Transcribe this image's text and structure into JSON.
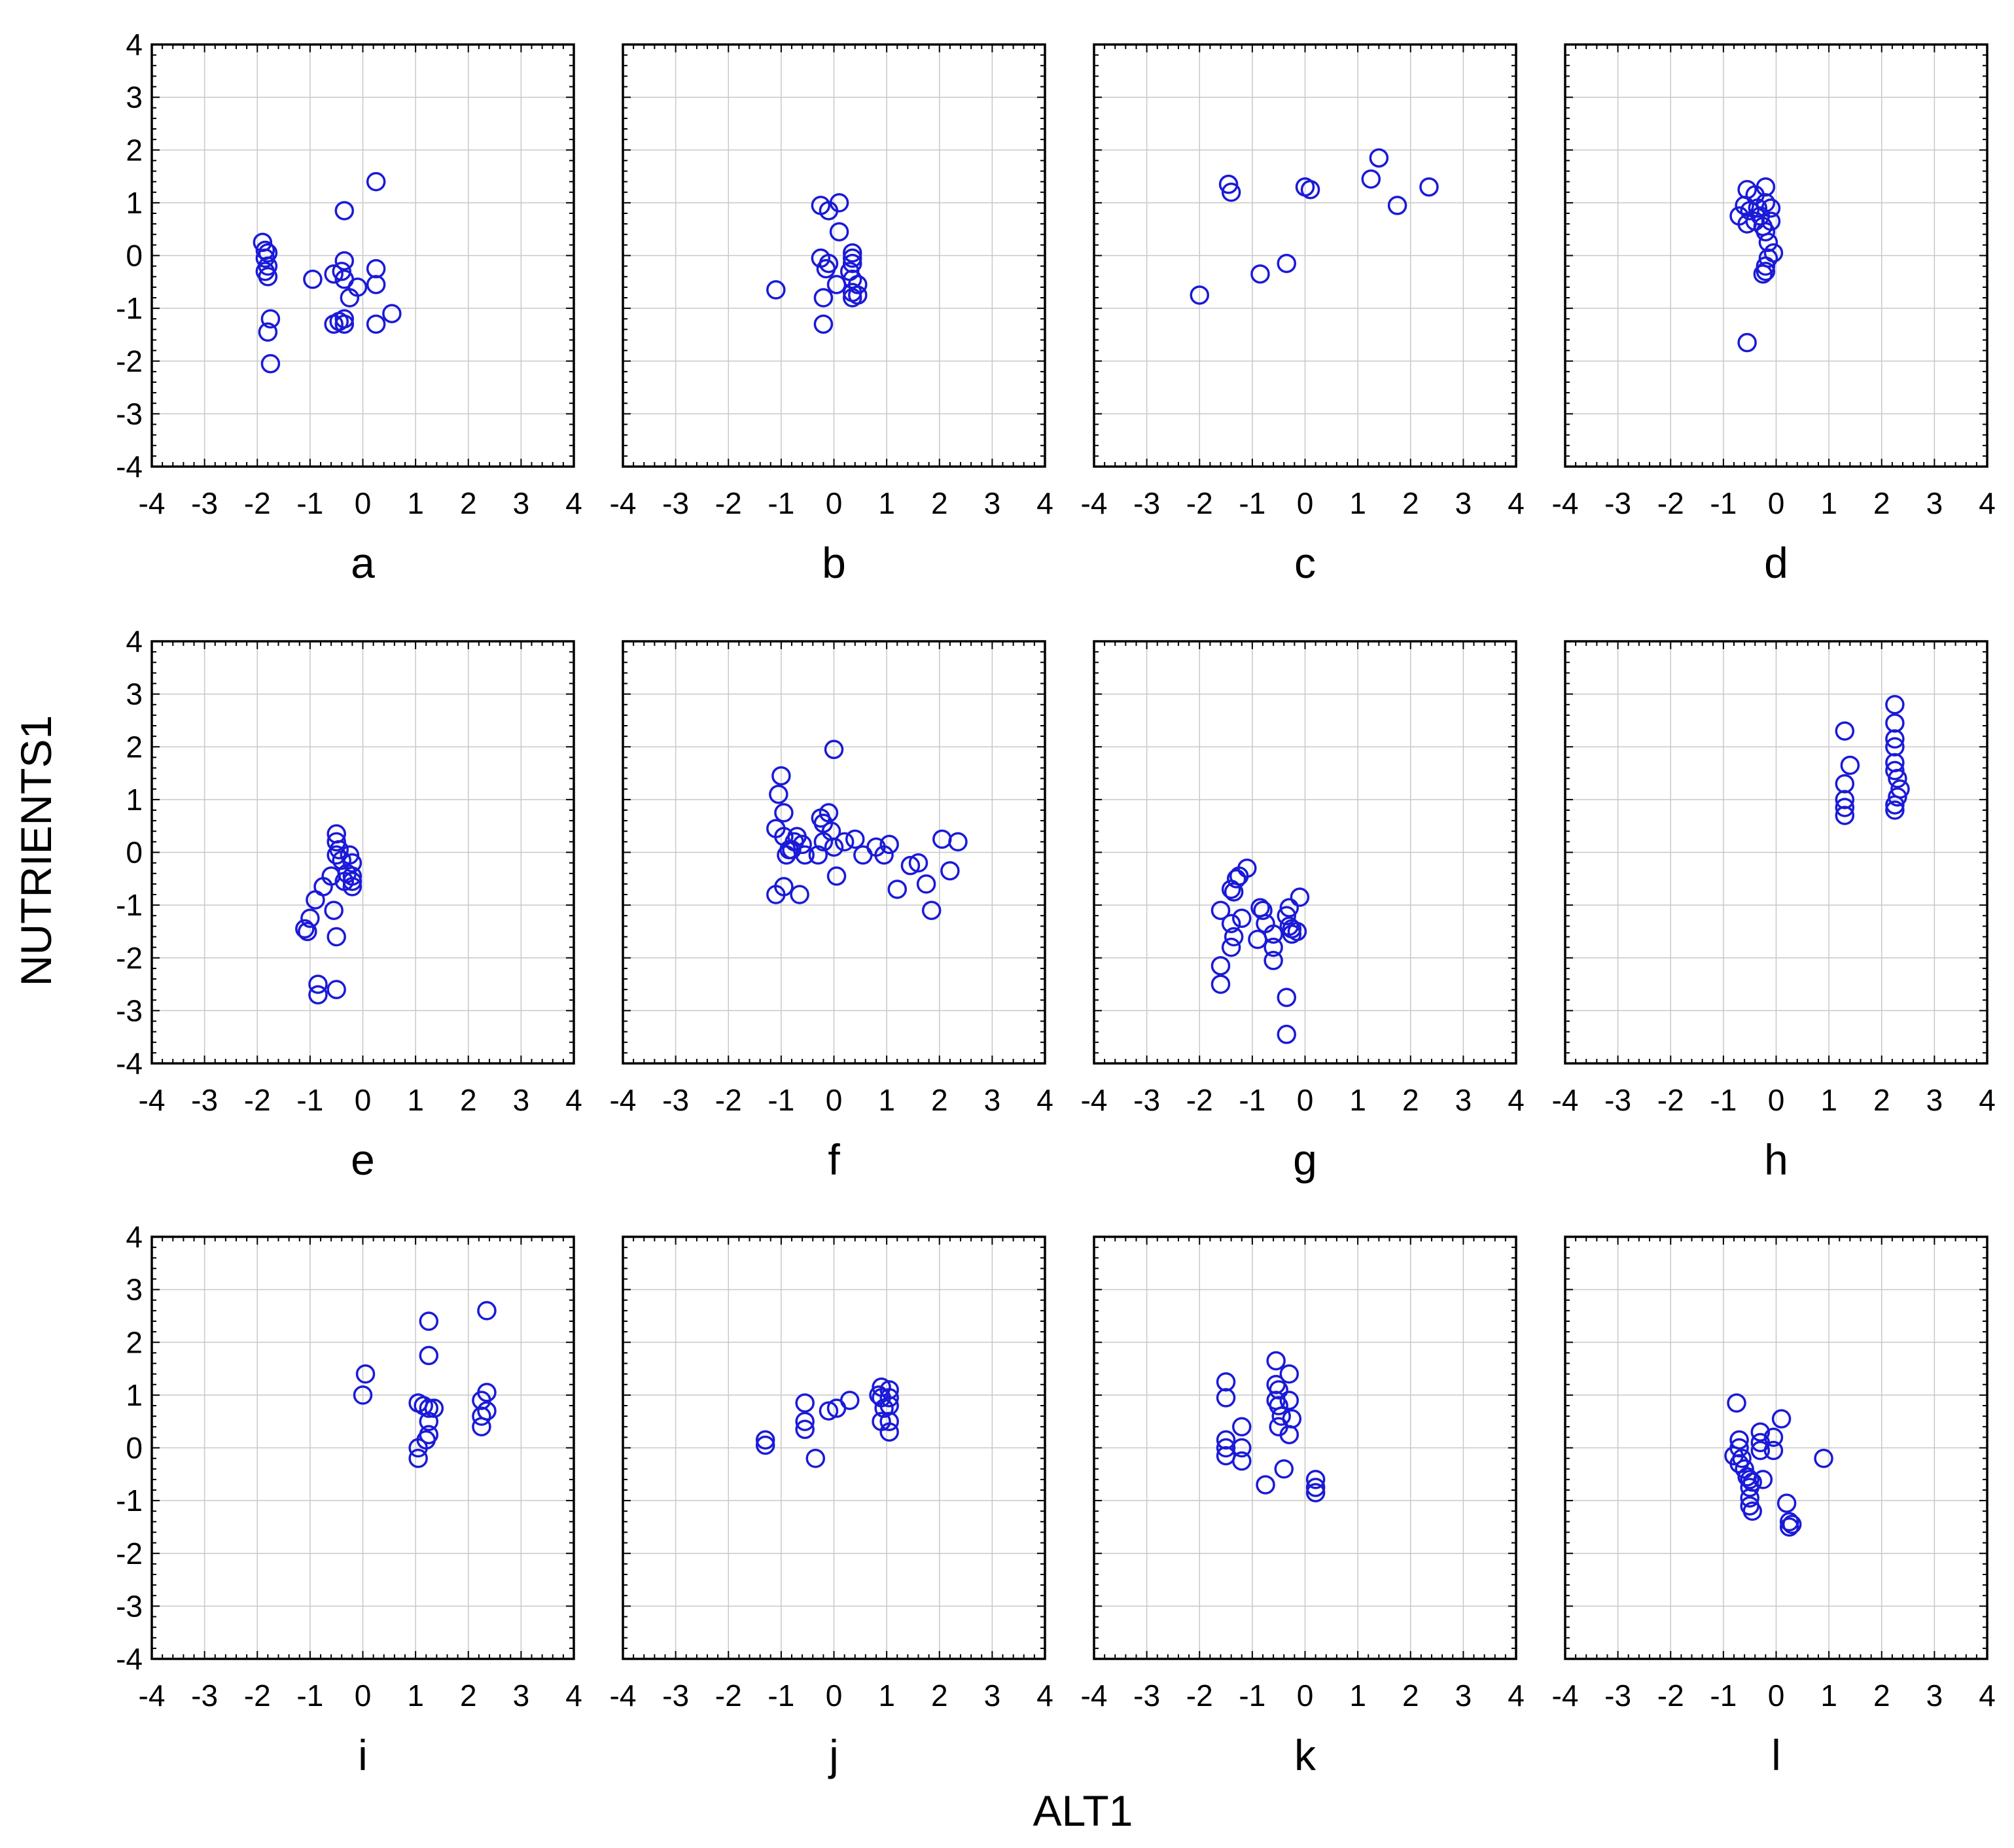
{
  "chart_data": {
    "type": "scatter",
    "layout": "3 rows x 4 columns",
    "xlabel": "ALT1",
    "ylabel": "NUTRIENTS1",
    "xlim": [
      -4,
      4
    ],
    "ylim": [
      -4,
      4
    ],
    "xticks": [
      "-4",
      "-3",
      "-2",
      "-1",
      "0",
      "1",
      "2",
      "3",
      "4"
    ],
    "yticks": [
      "4",
      "3",
      "2",
      "1",
      "0",
      "-1",
      "-2",
      "-3",
      "-4"
    ],
    "grid": true,
    "marker": "open circle",
    "color": "#1a1ad8",
    "panels": [
      {
        "label": "a",
        "points": [
          [
            -1.9,
            0.25
          ],
          [
            -1.85,
            0.1
          ],
          [
            -1.8,
            0.05
          ],
          [
            -1.85,
            -0.05
          ],
          [
            -1.8,
            -0.2
          ],
          [
            -1.85,
            -0.3
          ],
          [
            -1.8,
            -0.4
          ],
          [
            -1.75,
            -1.2
          ],
          [
            -1.8,
            -1.45
          ],
          [
            -1.75,
            -2.05
          ],
          [
            -0.95,
            -0.45
          ],
          [
            -0.55,
            -0.35
          ],
          [
            -0.4,
            -0.3
          ],
          [
            -0.35,
            -0.1
          ],
          [
            -0.35,
            -0.45
          ],
          [
            -0.25,
            -0.8
          ],
          [
            -0.45,
            -1.25
          ],
          [
            -0.35,
            -1.2
          ],
          [
            -0.35,
            -1.3
          ],
          [
            -0.55,
            -1.3
          ],
          [
            -0.35,
            0.85
          ],
          [
            -0.1,
            -0.6
          ],
          [
            0.25,
            -0.25
          ],
          [
            0.25,
            -0.55
          ],
          [
            0.25,
            -1.3
          ],
          [
            0.55,
            -1.1
          ],
          [
            0.25,
            1.4
          ]
        ]
      },
      {
        "label": "b",
        "points": [
          [
            -1.1,
            -0.65
          ],
          [
            -0.25,
            0.95
          ],
          [
            -0.1,
            0.85
          ],
          [
            0.1,
            1.0
          ],
          [
            0.1,
            0.45
          ],
          [
            -0.25,
            -0.05
          ],
          [
            -0.1,
            -0.15
          ],
          [
            -0.15,
            -0.25
          ],
          [
            0.05,
            -0.55
          ],
          [
            -0.2,
            -0.8
          ],
          [
            -0.2,
            -1.3
          ],
          [
            0.35,
            0.05
          ],
          [
            0.35,
            -0.05
          ],
          [
            0.35,
            -0.15
          ],
          [
            0.3,
            -0.3
          ],
          [
            0.35,
            -0.45
          ],
          [
            0.45,
            -0.55
          ],
          [
            0.35,
            -0.7
          ],
          [
            0.45,
            -0.75
          ],
          [
            0.35,
            -0.8
          ]
        ]
      },
      {
        "label": "c",
        "points": [
          [
            -2.0,
            -0.75
          ],
          [
            -0.85,
            -0.35
          ],
          [
            -0.35,
            -0.15
          ],
          [
            -1.45,
            1.35
          ],
          [
            -1.4,
            1.2
          ],
          [
            0.0,
            1.3
          ],
          [
            0.1,
            1.25
          ],
          [
            1.25,
            1.45
          ],
          [
            1.4,
            1.85
          ],
          [
            1.75,
            0.95
          ],
          [
            2.35,
            1.3
          ]
        ]
      },
      {
        "label": "d",
        "points": [
          [
            -0.55,
            1.25
          ],
          [
            -0.4,
            1.15
          ],
          [
            -0.2,
            1.3
          ],
          [
            -0.6,
            0.95
          ],
          [
            -0.5,
            0.85
          ],
          [
            -0.35,
            0.9
          ],
          [
            -0.3,
            0.75
          ],
          [
            -0.2,
            1.0
          ],
          [
            -0.1,
            0.9
          ],
          [
            -0.7,
            0.75
          ],
          [
            -0.55,
            0.6
          ],
          [
            -0.4,
            0.65
          ],
          [
            -0.25,
            0.55
          ],
          [
            -0.1,
            0.65
          ],
          [
            -0.2,
            0.45
          ],
          [
            -0.15,
            0.25
          ],
          [
            -0.05,
            0.05
          ],
          [
            -0.15,
            -0.05
          ],
          [
            -0.2,
            -0.2
          ],
          [
            -0.25,
            -0.35
          ],
          [
            -0.2,
            -0.3
          ],
          [
            -0.55,
            -1.65
          ]
        ]
      },
      {
        "label": "e",
        "points": [
          [
            -0.5,
            0.35
          ],
          [
            -0.5,
            0.2
          ],
          [
            -0.45,
            0.05
          ],
          [
            -0.5,
            -0.05
          ],
          [
            -0.4,
            -0.15
          ],
          [
            -0.25,
            -0.05
          ],
          [
            -0.2,
            -0.2
          ],
          [
            -0.3,
            -0.4
          ],
          [
            -0.2,
            -0.45
          ],
          [
            -0.2,
            -0.55
          ],
          [
            -0.2,
            -0.65
          ],
          [
            -0.35,
            -0.55
          ],
          [
            -0.6,
            -0.45
          ],
          [
            -0.75,
            -0.65
          ],
          [
            -0.9,
            -0.9
          ],
          [
            -0.55,
            -1.1
          ],
          [
            -1.0,
            -1.25
          ],
          [
            -1.1,
            -1.45
          ],
          [
            -1.05,
            -1.5
          ],
          [
            -0.5,
            -1.6
          ],
          [
            -0.85,
            -2.5
          ],
          [
            -0.85,
            -2.7
          ],
          [
            -0.5,
            -2.6
          ]
        ]
      },
      {
        "label": "f",
        "points": [
          [
            -1.0,
            1.45
          ],
          [
            -1.05,
            1.1
          ],
          [
            -0.95,
            0.75
          ],
          [
            -1.1,
            0.45
          ],
          [
            -0.95,
            0.3
          ],
          [
            -0.85,
            0.05
          ],
          [
            -0.7,
            0.3
          ],
          [
            -0.75,
            0.2
          ],
          [
            -0.6,
            0.15
          ],
          [
            -0.8,
            0.05
          ],
          [
            -0.55,
            -0.05
          ],
          [
            -0.9,
            -0.05
          ],
          [
            -1.1,
            -0.8
          ],
          [
            -0.95,
            -0.65
          ],
          [
            -0.65,
            -0.8
          ],
          [
            -0.25,
            0.65
          ],
          [
            -0.2,
            0.55
          ],
          [
            -0.1,
            0.75
          ],
          [
            -0.2,
            0.2
          ],
          [
            -0.3,
            -0.05
          ],
          [
            -0.05,
            0.4
          ],
          [
            0.0,
            0.1
          ],
          [
            0.05,
            -0.45
          ],
          [
            0.0,
            1.95
          ],
          [
            0.2,
            0.2
          ],
          [
            0.4,
            0.25
          ],
          [
            0.55,
            -0.05
          ],
          [
            0.8,
            0.1
          ],
          [
            0.95,
            -0.05
          ],
          [
            1.05,
            0.15
          ],
          [
            1.2,
            -0.7
          ],
          [
            1.45,
            -0.25
          ],
          [
            1.6,
            -0.2
          ],
          [
            1.75,
            -0.6
          ],
          [
            1.85,
            -1.1
          ],
          [
            2.05,
            0.25
          ],
          [
            2.2,
            -0.35
          ],
          [
            2.35,
            0.2
          ]
        ]
      },
      {
        "label": "g",
        "points": [
          [
            -1.1,
            -0.3
          ],
          [
            -1.25,
            -0.45
          ],
          [
            -1.3,
            -0.5
          ],
          [
            -1.4,
            -0.7
          ],
          [
            -1.35,
            -0.75
          ],
          [
            -1.6,
            -1.1
          ],
          [
            -1.4,
            -1.35
          ],
          [
            -1.2,
            -1.25
          ],
          [
            -1.35,
            -1.6
          ],
          [
            -1.4,
            -1.8
          ],
          [
            -1.6,
            -2.15
          ],
          [
            -1.6,
            -2.5
          ],
          [
            -0.85,
            -1.05
          ],
          [
            -0.8,
            -1.1
          ],
          [
            -0.75,
            -1.35
          ],
          [
            -0.9,
            -1.65
          ],
          [
            -0.6,
            -1.55
          ],
          [
            -0.6,
            -1.8
          ],
          [
            -0.6,
            -2.05
          ],
          [
            -0.35,
            -1.2
          ],
          [
            -0.3,
            -1.4
          ],
          [
            -0.25,
            -1.45
          ],
          [
            -0.25,
            -1.55
          ],
          [
            -0.15,
            -1.5
          ],
          [
            -0.1,
            -0.85
          ],
          [
            -0.3,
            -1.05
          ],
          [
            -0.35,
            -2.75
          ],
          [
            -0.35,
            -3.45
          ]
        ]
      },
      {
        "label": "h",
        "points": [
          [
            1.3,
            2.3
          ],
          [
            1.4,
            1.65
          ],
          [
            1.3,
            1.3
          ],
          [
            1.3,
            1.0
          ],
          [
            1.3,
            0.85
          ],
          [
            1.3,
            0.7
          ],
          [
            2.25,
            2.8
          ],
          [
            2.25,
            2.45
          ],
          [
            2.25,
            2.15
          ],
          [
            2.25,
            2.0
          ],
          [
            2.25,
            1.7
          ],
          [
            2.25,
            1.55
          ],
          [
            2.3,
            1.4
          ],
          [
            2.35,
            1.2
          ],
          [
            2.3,
            1.05
          ],
          [
            2.25,
            0.9
          ],
          [
            2.25,
            0.8
          ]
        ]
      },
      {
        "label": "i",
        "points": [
          [
            0.05,
            1.4
          ],
          [
            0.0,
            1.0
          ],
          [
            1.25,
            2.4
          ],
          [
            1.25,
            1.75
          ],
          [
            1.05,
            0.85
          ],
          [
            1.15,
            0.8
          ],
          [
            1.25,
            0.75
          ],
          [
            1.35,
            0.75
          ],
          [
            1.25,
            0.5
          ],
          [
            1.25,
            0.25
          ],
          [
            1.2,
            0.15
          ],
          [
            1.05,
            0.0
          ],
          [
            1.05,
            -0.2
          ],
          [
            2.35,
            2.6
          ],
          [
            2.35,
            1.05
          ],
          [
            2.25,
            0.9
          ],
          [
            2.35,
            0.7
          ],
          [
            2.25,
            0.6
          ],
          [
            2.25,
            0.4
          ]
        ]
      },
      {
        "label": "j",
        "points": [
          [
            -1.3,
            0.15
          ],
          [
            -1.3,
            0.05
          ],
          [
            -0.55,
            0.85
          ],
          [
            -0.55,
            0.5
          ],
          [
            -0.55,
            0.35
          ],
          [
            -0.35,
            -0.2
          ],
          [
            -0.1,
            0.7
          ],
          [
            0.05,
            0.75
          ],
          [
            0.3,
            0.9
          ],
          [
            0.9,
            1.15
          ],
          [
            0.85,
            1.0
          ],
          [
            0.9,
            0.95
          ],
          [
            1.05,
            1.1
          ],
          [
            1.05,
            0.95
          ],
          [
            1.05,
            0.8
          ],
          [
            0.95,
            0.75
          ],
          [
            0.9,
            0.5
          ],
          [
            1.05,
            0.5
          ],
          [
            1.05,
            0.3
          ]
        ]
      },
      {
        "label": "k",
        "points": [
          [
            -1.5,
            1.25
          ],
          [
            -1.5,
            0.95
          ],
          [
            -1.5,
            0.15
          ],
          [
            -1.5,
            0.0
          ],
          [
            -1.5,
            -0.15
          ],
          [
            -1.2,
            0.4
          ],
          [
            -1.2,
            0.0
          ],
          [
            -1.2,
            -0.25
          ],
          [
            -0.75,
            -0.7
          ],
          [
            -0.55,
            1.65
          ],
          [
            -0.55,
            1.2
          ],
          [
            -0.5,
            1.1
          ],
          [
            -0.55,
            0.9
          ],
          [
            -0.5,
            0.8
          ],
          [
            -0.45,
            0.6
          ],
          [
            -0.5,
            0.4
          ],
          [
            -0.3,
            1.4
          ],
          [
            -0.3,
            0.9
          ],
          [
            -0.25,
            0.55
          ],
          [
            -0.3,
            0.25
          ],
          [
            -0.4,
            -0.4
          ],
          [
            0.2,
            -0.6
          ],
          [
            0.2,
            -0.75
          ],
          [
            0.2,
            -0.85
          ]
        ]
      },
      {
        "label": "l",
        "points": [
          [
            -0.75,
            0.85
          ],
          [
            -0.7,
            0.15
          ],
          [
            -0.7,
            0.0
          ],
          [
            -0.8,
            -0.15
          ],
          [
            -0.65,
            -0.2
          ],
          [
            -0.7,
            -0.3
          ],
          [
            -0.6,
            -0.4
          ],
          [
            -0.55,
            -0.55
          ],
          [
            -0.5,
            -0.6
          ],
          [
            -0.45,
            -0.65
          ],
          [
            -0.5,
            -0.75
          ],
          [
            -0.5,
            -0.95
          ],
          [
            -0.5,
            -1.1
          ],
          [
            -0.45,
            -1.2
          ],
          [
            -0.3,
            0.3
          ],
          [
            -0.3,
            0.1
          ],
          [
            -0.3,
            -0.05
          ],
          [
            -0.25,
            -0.6
          ],
          [
            -0.05,
            0.2
          ],
          [
            -0.05,
            -0.05
          ],
          [
            0.1,
            0.55
          ],
          [
            0.2,
            -1.05
          ],
          [
            0.25,
            -1.4
          ],
          [
            0.25,
            -1.5
          ],
          [
            0.3,
            -1.45
          ],
          [
            0.9,
            -0.2
          ]
        ]
      }
    ]
  }
}
